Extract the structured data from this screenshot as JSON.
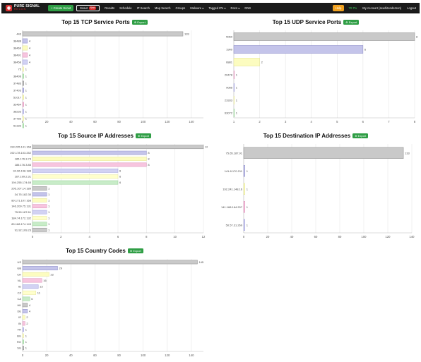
{
  "navbar": {
    "logo_line1": "PURE SIGNAL",
    "logo_line2": "RECON",
    "create_scout_label": "+ Create Scout",
    "scout_label": "Scout",
    "scout_badge": "New",
    "links": [
      "Results",
      "Schedule",
      "IP Search",
      "Map Search",
      "Groups",
      "Malware ▾",
      "Tagged IPs ▾",
      "Docs ▾",
      "DNS"
    ],
    "help_label": "Help",
    "credits": "70.7%",
    "account_label": "My Account (sewhitenderson)",
    "logout_label": "Logout"
  },
  "colors": {
    "navbar_bg": "#1b1b1b",
    "accent_green": "#2f9e45",
    "help_orange": "#f0a120",
    "brand_red": "#d62f2f",
    "palette": [
      {
        "fill": "#c9c9c9",
        "stroke": "#8a8a8a"
      },
      {
        "fill": "#c4c4ea",
        "stroke": "#8b8bc8"
      },
      {
        "fill": "#fcfcc0",
        "stroke": "#e2e28e"
      },
      {
        "fill": "#f7c5df",
        "stroke": "#dc8cb6"
      },
      {
        "fill": "#d2d2f3",
        "stroke": "#9d9dda"
      },
      {
        "fill": "#ffffcc",
        "stroke": "#e6e699"
      },
      {
        "fill": "#c8ecc8",
        "stroke": "#8fcf8f"
      }
    ]
  },
  "export_label": "Export",
  "chart_data": [
    {
      "id": "tcp",
      "type": "bar",
      "orientation": "horizontal",
      "title": "Top 15 TCP Service Ports",
      "categories": [
        "443",
        "38488",
        "38469",
        "38491",
        "38458",
        "75",
        "38406",
        "37483",
        "37403",
        "51017",
        "33464",
        "38233",
        "37783",
        "51333",
        "51030"
      ],
      "values": [
        133,
        4,
        4,
        4,
        4,
        1,
        1,
        1,
        1,
        1,
        1,
        1,
        1,
        1,
        1
      ],
      "value_labels": [
        "133",
        "4",
        "4",
        "4",
        "4",
        "1",
        "1",
        "1",
        "1",
        "1",
        "1",
        "1",
        "1",
        "1",
        "1"
      ],
      "xlim": [
        0,
        150
      ],
      "ticks": [
        0,
        20,
        40,
        60,
        80,
        100,
        120,
        140
      ],
      "grid": true
    },
    {
      "id": "udp",
      "type": "bar",
      "orientation": "horizontal",
      "title": "Top 15 UDP Service Ports",
      "categories": [
        "5060",
        "1900",
        "6881",
        "20478",
        "9085",
        "23333",
        "63072"
      ],
      "values": [
        8,
        6,
        2,
        1,
        1,
        1,
        1
      ],
      "value_labels": [
        "8",
        "6",
        "2",
        "1",
        "1",
        "1",
        "1"
      ],
      "xlim": [
        1,
        8
      ],
      "ticks": [
        1,
        2,
        3,
        4,
        5,
        6,
        7,
        8
      ],
      "grid": true
    },
    {
      "id": "srcip",
      "type": "bar",
      "orientation": "horizontal",
      "title": "Top 15 Source IP Addresses",
      "categories": [
        "193.235.141.168",
        "192.178.103.252",
        "185.176.3.73",
        "185.176.3.85",
        "34.96.198.188",
        "167.199.2.31",
        "194.255.174.65",
        "205.107.14.189",
        "34.75.182.30",
        "80.171.107.168",
        "146.200.75.131",
        "75.50.187.61",
        "184.74.172.132",
        "80.168.174.143",
        "91.92.109.23"
      ],
      "values": [
        12,
        8,
        8,
        8,
        6,
        6,
        6,
        1,
        1,
        1,
        1,
        1,
        1,
        1,
        1
      ],
      "value_labels": [
        "12",
        "8",
        "8",
        "8",
        "6",
        "6",
        "6",
        "1",
        "1",
        "1",
        "1",
        "1",
        "1",
        "1",
        "1"
      ],
      "xlim": [
        0,
        12
      ],
      "ticks": [
        0,
        2,
        4,
        6,
        8,
        10,
        12
      ],
      "grid": true
    },
    {
      "id": "dstip",
      "type": "bar",
      "orientation": "horizontal",
      "title": "Top 15 Destination IP Addresses",
      "categories": [
        "75.65.187.91",
        "141.8.170.211",
        "192.241.148.16",
        "141.168.164.207",
        "50.57.31.269"
      ],
      "values": [
        133,
        1,
        1,
        1,
        1
      ],
      "value_labels": [
        "133",
        "1",
        "1",
        "1",
        "1"
      ],
      "xlim": [
        0,
        140
      ],
      "ticks": [
        0,
        20,
        40,
        60,
        80,
        100,
        120,
        140
      ],
      "grid": true
    },
    {
      "id": "country",
      "type": "bar",
      "orientation": "horizontal",
      "title": "Top 15 Country Codes",
      "categories": [
        "US",
        "GB",
        "CH",
        "NL",
        "ID",
        "CZ",
        "CA",
        "HK",
        "DE",
        "IE",
        "IN",
        "FR",
        "BG",
        "RO",
        "SG"
      ],
      "values": [
        145,
        29,
        22,
        16,
        13,
        11,
        6,
        4,
        4,
        2,
        2,
        1,
        1,
        1,
        1
      ],
      "value_labels": [
        "145",
        "29",
        "22",
        "16",
        "13",
        "11",
        "6",
        "4",
        "4",
        "2",
        "2",
        "1",
        "1",
        "1",
        "1"
      ],
      "xlim": [
        0,
        150
      ],
      "ticks": [
        0,
        20,
        40,
        60,
        80,
        100,
        120,
        140
      ],
      "grid": true
    }
  ]
}
